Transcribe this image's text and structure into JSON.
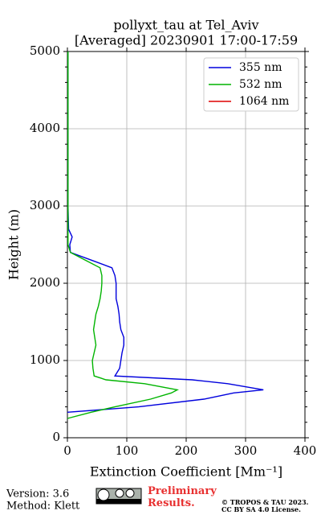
{
  "chart_data": {
    "type": "line",
    "title": "pollyxt_tau at Tel_Aviv",
    "subtitle": "[Averaged] 20230901 17:00-17:59",
    "x_label": "Extinction Coefficient [Mm⁻¹]",
    "y_label": "Height (m)",
    "y": [
      250,
      330,
      400,
      500,
      580,
      620,
      700,
      750,
      800,
      900,
      1000,
      1100,
      1200,
      1300,
      1400,
      1500,
      1600,
      1700,
      1800,
      1900,
      2000,
      2100,
      2200,
      2300,
      2400,
      2500,
      2600,
      2700,
      3000,
      3500,
      4000,
      4500,
      5000
    ],
    "series": [
      {
        "name": "355 nm",
        "color": "#0000dd",
        "values": [
          null,
          0,
          120,
          230,
          280,
          330,
          270,
          210,
          80,
          88,
          90,
          92,
          95,
          95,
          90,
          88,
          87,
          85,
          82,
          82,
          82,
          80,
          75,
          40,
          5,
          4,
          8,
          2,
          1,
          1,
          1,
          1,
          1
        ]
      },
      {
        "name": "532 nm",
        "color": "#00b400",
        "values": [
          0,
          40,
          80,
          140,
          175,
          185,
          130,
          65,
          45,
          43,
          42,
          45,
          48,
          46,
          44,
          46,
          48,
          52,
          55,
          57,
          58,
          58,
          55,
          30,
          5,
          1,
          1,
          1,
          1,
          1,
          1,
          1,
          1
        ]
      },
      {
        "name": "1064 nm",
        "color": "#dd0000",
        "values": [
          null,
          null,
          null,
          null,
          null,
          null,
          null,
          null,
          null,
          null,
          null,
          null,
          null,
          null,
          null,
          null,
          null,
          null,
          null,
          null,
          null,
          null,
          null,
          null,
          null,
          null,
          null,
          null,
          null,
          null,
          null,
          null,
          null
        ]
      }
    ],
    "xlim": [
      0,
      400
    ],
    "xticks": [
      0,
      100,
      200,
      300,
      400
    ],
    "ylim": [
      0,
      5000
    ],
    "yticks": [
      0,
      1000,
      2000,
      3000,
      4000,
      5000
    ],
    "grid": true,
    "legend": "upper right",
    "footer": {
      "version": "Version: 3.6",
      "method": "Method: Klett",
      "status": "Preliminary Results.",
      "copyright": "© TROPOS & TAU 2023.",
      "license": "CC BY SA 4.0 License."
    }
  }
}
